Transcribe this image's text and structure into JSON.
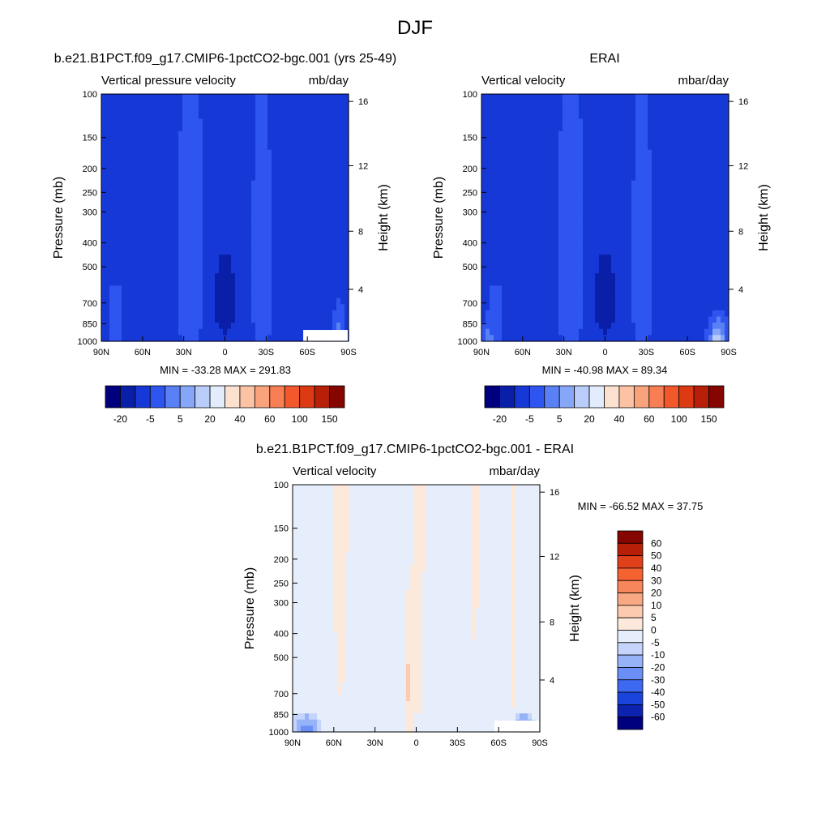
{
  "figure_title": "DJF",
  "chart_data": [
    {
      "type": "heatmap",
      "title": "b.e21.B1PCT.f09_g17.CMIP6-1pctCO2-bgc.001 (yrs 25-49)",
      "left_string": "Vertical pressure velocity",
      "right_string": "mb/day",
      "ylabel": "Pressure (mb)",
      "ylabel_right": "Height (km)",
      "x_ticks": [
        "90N",
        "60N",
        "30N",
        "0",
        "30S",
        "60S",
        "90S"
      ],
      "x_values": [
        90,
        60,
        30,
        0,
        -30,
        -60,
        -90
      ],
      "y_ticks": [
        100,
        150,
        200,
        250,
        300,
        400,
        500,
        700,
        850,
        1000
      ],
      "y_ticks_right": [
        16,
        12,
        8,
        4
      ],
      "y_scale": "log",
      "ylim": [
        1000,
        100
      ],
      "stats": "MIN = -33.28  MAX = 291.83",
      "min": -33.28,
      "max": 291.83,
      "colorbar_orientation": "horizontal",
      "colorbar_levels": [
        -20,
        -5,
        5,
        20,
        40,
        60,
        100,
        150
      ],
      "colorbar_labels": [
        "-20",
        "-5",
        "5",
        "20",
        "40",
        "60",
        "100",
        "150"
      ],
      "colors": [
        "#00007f",
        "#0a1fa8",
        "#1638d6",
        "#2e55f0",
        "#5a80f5",
        "#86a6f8",
        "#b9ccfa",
        "#e3ecfc",
        "#fde1cf",
        "#fbc2a4",
        "#f9a37c",
        "#f77f53",
        "#f2582c",
        "#dd3a14",
        "#b81f08",
        "#850500"
      ]
    },
    {
      "type": "heatmap",
      "title": "ERAI",
      "left_string": "Vertical velocity",
      "right_string": "mbar/day",
      "ylabel": "Pressure (mb)",
      "ylabel_right": "Height (km)",
      "x_ticks": [
        "90N",
        "60N",
        "30N",
        "0",
        "30S",
        "60S",
        "90S"
      ],
      "x_values": [
        90,
        60,
        30,
        0,
        -30,
        -60,
        -90
      ],
      "y_ticks": [
        100,
        150,
        200,
        250,
        300,
        400,
        500,
        700,
        850,
        1000
      ],
      "y_ticks_right": [
        16,
        12,
        8,
        4
      ],
      "y_scale": "log",
      "ylim": [
        1000,
        100
      ],
      "stats": "MIN = -40.98  MAX =  89.34",
      "min": -40.98,
      "max": 89.34,
      "colorbar_orientation": "horizontal",
      "colorbar_levels": [
        -20,
        -5,
        5,
        20,
        40,
        60,
        100,
        150
      ],
      "colorbar_labels": [
        "-20",
        "-5",
        "5",
        "20",
        "40",
        "60",
        "100",
        "150"
      ],
      "colors": [
        "#00007f",
        "#0a1fa8",
        "#1638d6",
        "#2e55f0",
        "#5a80f5",
        "#86a6f8",
        "#b9ccfa",
        "#e3ecfc",
        "#fde1cf",
        "#fbc2a4",
        "#f9a37c",
        "#f77f53",
        "#f2582c",
        "#dd3a14",
        "#b81f08",
        "#850500"
      ]
    },
    {
      "type": "heatmap",
      "title": "b.e21.B1PCT.f09_g17.CMIP6-1pctCO2-bgc.001 - ERAI",
      "left_string": "Vertical velocity",
      "right_string": "mbar/day",
      "ylabel": "Pressure (mb)",
      "ylabel_right": "Height (km)",
      "x_ticks": [
        "90N",
        "60N",
        "30N",
        "0",
        "30S",
        "60S",
        "90S"
      ],
      "x_values": [
        90,
        60,
        30,
        0,
        -30,
        -60,
        -90
      ],
      "y_ticks": [
        100,
        150,
        200,
        250,
        300,
        400,
        500,
        700,
        850,
        1000
      ],
      "y_ticks_right": [
        16,
        12,
        8,
        4
      ],
      "y_scale": "log",
      "ylim": [
        1000,
        100
      ],
      "stats": "MIN = -66.52  MAX =  37.75",
      "min": -66.52,
      "max": 37.75,
      "colorbar_orientation": "vertical",
      "colorbar_levels": [
        60,
        50,
        40,
        30,
        20,
        10,
        5,
        0,
        -5,
        -10,
        -20,
        -30,
        -40,
        -50,
        -60
      ],
      "colorbar_labels": [
        "60",
        "50",
        "40",
        "30",
        "20",
        "10",
        "5",
        "0",
        "-5",
        "-10",
        "-20",
        "-30",
        "-40",
        "-50",
        "-60"
      ],
      "colors": [
        "#850500",
        "#b81f08",
        "#e0401a",
        "#f4622f",
        "#f7865a",
        "#f9a884",
        "#fccaae",
        "#fde9dc",
        "#e6eefc",
        "#c4d4fa",
        "#97b3f8",
        "#6b8ff5",
        "#3d68f0",
        "#1a44dc",
        "#0d22ae",
        "#00007f"
      ]
    }
  ]
}
